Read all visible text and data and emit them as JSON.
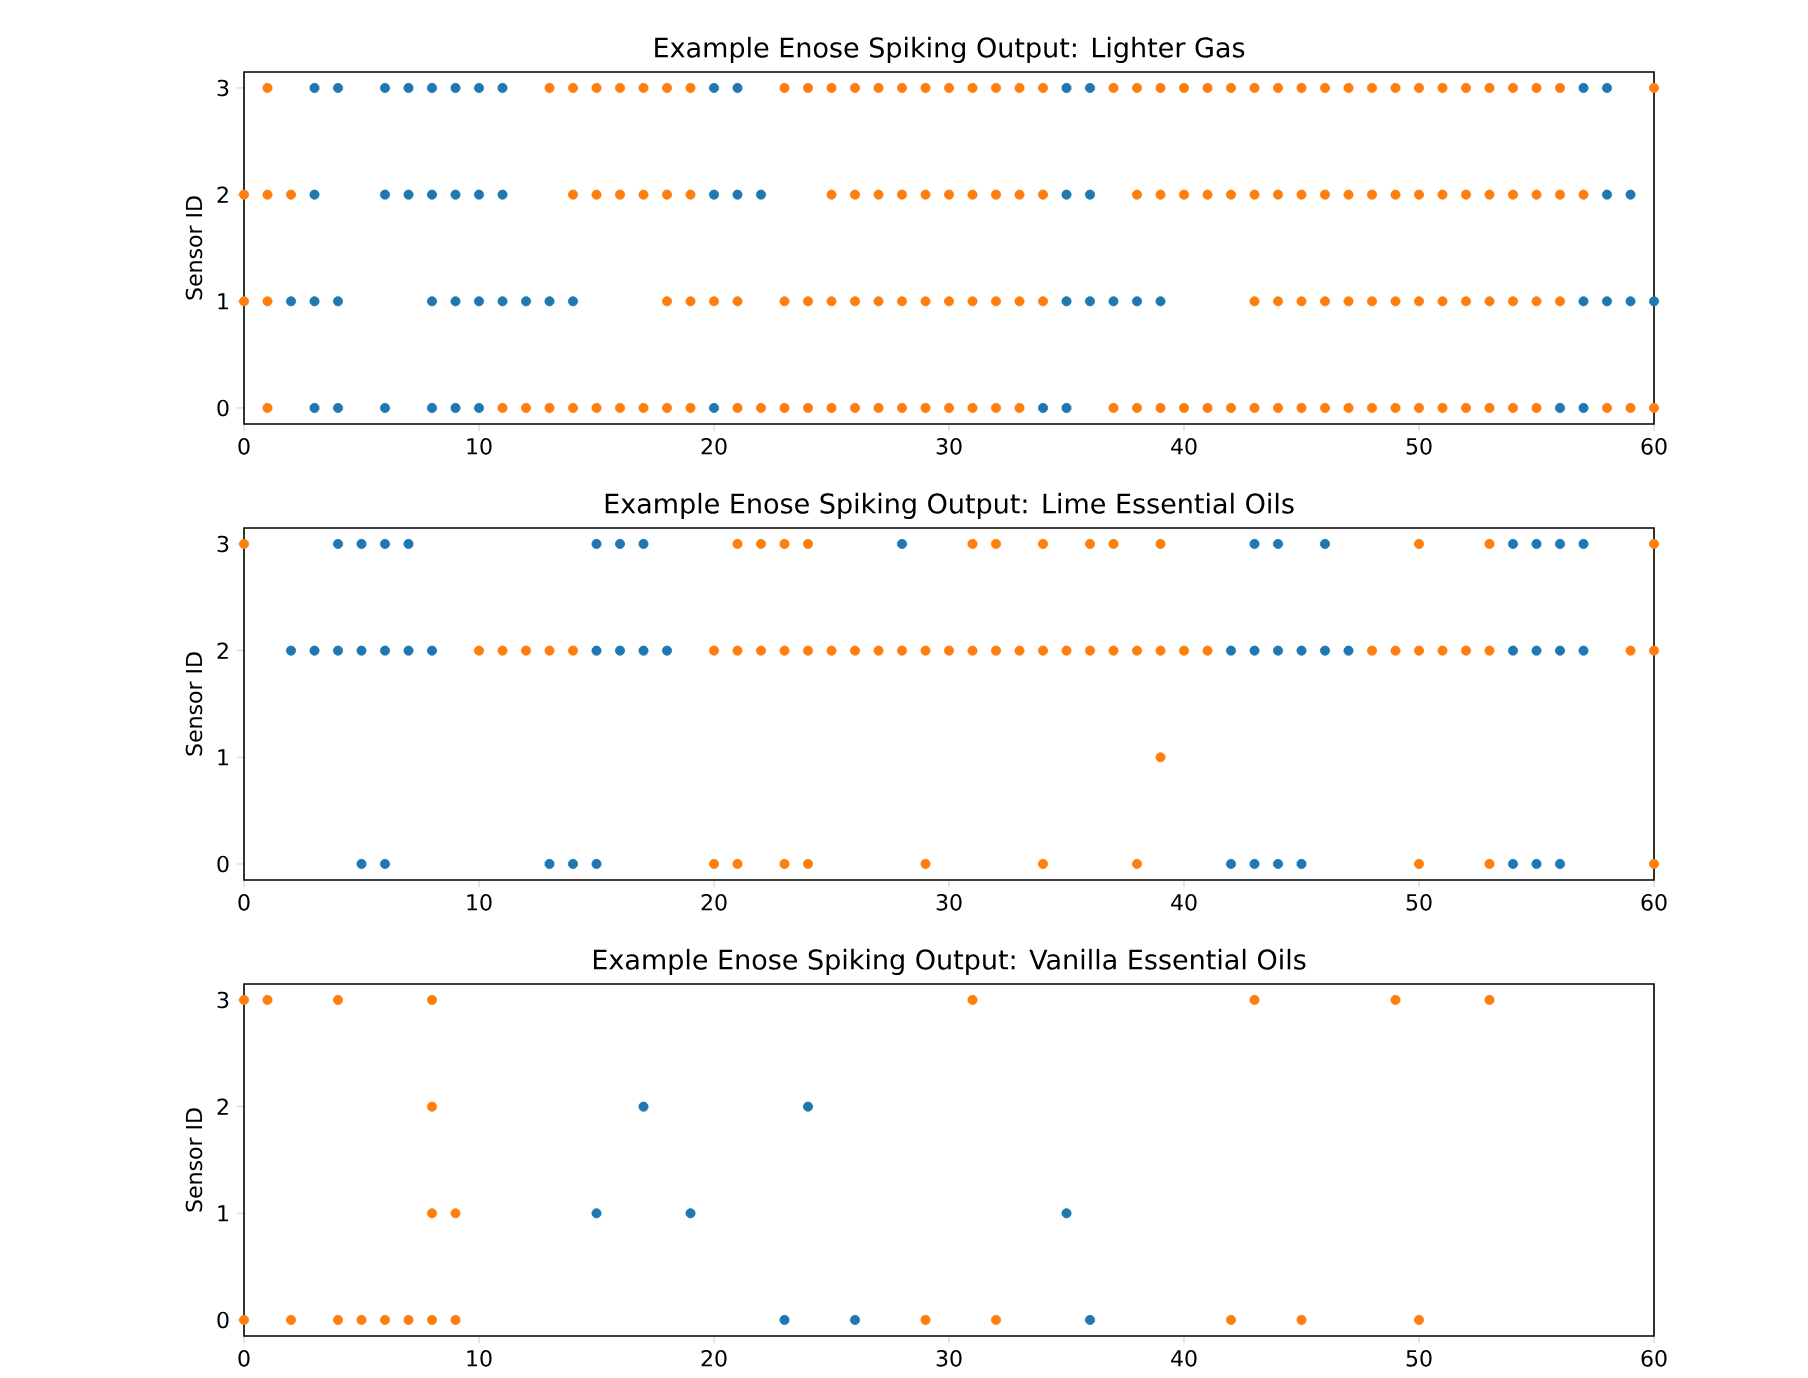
{
  "chart_data": [
    {
      "type": "scatter",
      "title": "Example Enose Spiking Output: Lighter Gas",
      "ylabel": "Sensor ID",
      "marker": "circle",
      "xlim": [
        0,
        60
      ],
      "xticks": [
        0,
        10,
        20,
        30,
        40,
        50,
        60
      ],
      "ylim": [
        -0.15,
        3.15
      ],
      "yticks": [
        0,
        1,
        2,
        3
      ],
      "series": [
        {
          "color": "#1f77b4",
          "x": [
            3,
            4,
            6,
            7,
            8,
            9,
            10,
            11,
            20,
            21,
            35,
            36,
            57,
            58,
            3,
            6,
            7,
            8,
            9,
            10,
            11,
            20,
            21,
            22,
            35,
            36,
            58,
            59,
            2,
            3,
            4,
            8,
            9,
            10,
            11,
            12,
            13,
            14,
            35,
            36,
            37,
            38,
            39,
            57,
            58,
            59,
            60,
            3,
            4,
            6,
            8,
            9,
            10,
            20,
            34,
            35,
            56,
            57
          ],
          "values": [
            3,
            3,
            3,
            3,
            3,
            3,
            3,
            3,
            3,
            3,
            3,
            3,
            3,
            3,
            2,
            2,
            2,
            2,
            2,
            2,
            2,
            2,
            2,
            2,
            2,
            2,
            2,
            2,
            1,
            1,
            1,
            1,
            1,
            1,
            1,
            1,
            1,
            1,
            1,
            1,
            1,
            1,
            1,
            1,
            1,
            1,
            1,
            0,
            0,
            0,
            0,
            0,
            0,
            0,
            0,
            0,
            0,
            0
          ]
        },
        {
          "color": "#ff7f0e",
          "x": [
            1,
            13,
            14,
            15,
            16,
            17,
            18,
            19,
            23,
            24,
            25,
            26,
            27,
            28,
            29,
            30,
            31,
            32,
            33,
            34,
            37,
            38,
            39,
            40,
            41,
            42,
            43,
            44,
            45,
            46,
            47,
            48,
            49,
            50,
            51,
            52,
            53,
            54,
            55,
            56,
            60,
            0,
            1,
            2,
            14,
            15,
            16,
            17,
            18,
            19,
            25,
            26,
            27,
            28,
            29,
            30,
            31,
            32,
            33,
            34,
            38,
            39,
            40,
            41,
            42,
            43,
            44,
            45,
            46,
            47,
            48,
            49,
            50,
            51,
            52,
            53,
            54,
            55,
            56,
            57,
            0,
            1,
            18,
            19,
            20,
            21,
            23,
            24,
            25,
            26,
            27,
            28,
            29,
            30,
            31,
            32,
            33,
            34,
            43,
            44,
            45,
            46,
            47,
            48,
            49,
            50,
            51,
            52,
            53,
            54,
            55,
            56,
            1,
            11,
            12,
            13,
            14,
            15,
            16,
            17,
            18,
            19,
            21,
            22,
            23,
            24,
            25,
            26,
            27,
            28,
            29,
            30,
            31,
            32,
            33,
            37,
            38,
            39,
            40,
            41,
            42,
            43,
            44,
            45,
            46,
            47,
            48,
            49,
            50,
            51,
            52,
            53,
            54,
            55,
            58,
            59,
            60
          ],
          "values": [
            3,
            3,
            3,
            3,
            3,
            3,
            3,
            3,
            3,
            3,
            3,
            3,
            3,
            3,
            3,
            3,
            3,
            3,
            3,
            3,
            3,
            3,
            3,
            3,
            3,
            3,
            3,
            3,
            3,
            3,
            3,
            3,
            3,
            3,
            3,
            3,
            3,
            3,
            3,
            3,
            3,
            2,
            2,
            2,
            2,
            2,
            2,
            2,
            2,
            2,
            2,
            2,
            2,
            2,
            2,
            2,
            2,
            2,
            2,
            2,
            2,
            2,
            2,
            2,
            2,
            2,
            2,
            2,
            2,
            2,
            2,
            2,
            2,
            2,
            2,
            2,
            2,
            2,
            2,
            2,
            1,
            1,
            1,
            1,
            1,
            1,
            1,
            1,
            1,
            1,
            1,
            1,
            1,
            1,
            1,
            1,
            1,
            1,
            1,
            1,
            1,
            1,
            1,
            1,
            1,
            1,
            1,
            1,
            1,
            1,
            1,
            1,
            0,
            0,
            0,
            0,
            0,
            0,
            0,
            0,
            0,
            0,
            0,
            0,
            0,
            0,
            0,
            0,
            0,
            0,
            0,
            0,
            0,
            0,
            0,
            0,
            0,
            0,
            0,
            0,
            0,
            0,
            0,
            0,
            0,
            0,
            0,
            0,
            0,
            0,
            0,
            0,
            0,
            0,
            0,
            0,
            0
          ]
        }
      ]
    },
    {
      "type": "scatter",
      "title": "Example Enose Spiking Output: Lime Essential Oils",
      "ylabel": "Sensor ID",
      "marker": "circle",
      "xlim": [
        0,
        60
      ],
      "xticks": [
        0,
        10,
        20,
        30,
        40,
        50,
        60
      ],
      "ylim": [
        -0.15,
        3.15
      ],
      "yticks": [
        0,
        1,
        2,
        3
      ],
      "series": [
        {
          "color": "#1f77b4",
          "x": [
            4,
            5,
            6,
            7,
            15,
            16,
            17,
            28,
            43,
            44,
            46,
            54,
            55,
            56,
            57,
            2,
            3,
            4,
            5,
            6,
            7,
            8,
            15,
            16,
            17,
            18,
            42,
            43,
            44,
            45,
            46,
            47,
            54,
            55,
            56,
            57,
            5,
            6,
            13,
            14,
            15,
            42,
            43,
            44,
            45,
            54,
            55,
            56
          ],
          "values": [
            3,
            3,
            3,
            3,
            3,
            3,
            3,
            3,
            3,
            3,
            3,
            3,
            3,
            3,
            3,
            2,
            2,
            2,
            2,
            2,
            2,
            2,
            2,
            2,
            2,
            2,
            2,
            2,
            2,
            2,
            2,
            2,
            2,
            2,
            2,
            2,
            0,
            0,
            0,
            0,
            0,
            0,
            0,
            0,
            0,
            0,
            0,
            0
          ]
        },
        {
          "color": "#ff7f0e",
          "x": [
            0,
            21,
            22,
            23,
            24,
            31,
            32,
            34,
            36,
            37,
            39,
            50,
            53,
            60,
            10,
            11,
            12,
            13,
            14,
            20,
            21,
            22,
            23,
            24,
            25,
            26,
            27,
            28,
            29,
            30,
            31,
            32,
            33,
            34,
            35,
            36,
            37,
            38,
            39,
            40,
            41,
            48,
            49,
            50,
            51,
            52,
            53,
            59,
            60,
            39,
            20,
            21,
            23,
            24,
            29,
            34,
            38,
            50,
            53,
            60
          ],
          "values": [
            3,
            3,
            3,
            3,
            3,
            3,
            3,
            3,
            3,
            3,
            3,
            3,
            3,
            3,
            2,
            2,
            2,
            2,
            2,
            2,
            2,
            2,
            2,
            2,
            2,
            2,
            2,
            2,
            2,
            2,
            2,
            2,
            2,
            2,
            2,
            2,
            2,
            2,
            2,
            2,
            2,
            2,
            2,
            2,
            2,
            2,
            2,
            2,
            2,
            1,
            0,
            0,
            0,
            0,
            0,
            0,
            0,
            0,
            0,
            0
          ]
        }
      ]
    },
    {
      "type": "scatter",
      "title": "Example Enose Spiking Output: Vanilla Essential Oils",
      "ylabel": "Sensor ID",
      "marker": "circle",
      "xlim": [
        0,
        60
      ],
      "xticks": [
        0,
        10,
        20,
        30,
        40,
        50,
        60
      ],
      "ylim": [
        -0.15,
        3.15
      ],
      "yticks": [
        0,
        1,
        2,
        3
      ],
      "series": [
        {
          "color": "#1f77b4",
          "x": [
            17,
            24,
            15,
            19,
            35,
            23,
            26,
            36
          ],
          "values": [
            2,
            2,
            1,
            1,
            1,
            0,
            0,
            0
          ]
        },
        {
          "color": "#ff7f0e",
          "x": [
            0,
            1,
            4,
            8,
            31,
            43,
            49,
            53,
            8,
            8,
            9,
            0,
            2,
            4,
            5,
            6,
            7,
            8,
            9,
            29,
            32,
            42,
            45,
            50
          ],
          "values": [
            3,
            3,
            3,
            3,
            3,
            3,
            3,
            3,
            2,
            1,
            1,
            0,
            0,
            0,
            0,
            0,
            0,
            0,
            0,
            0,
            0,
            0,
            0,
            0
          ]
        }
      ]
    }
  ]
}
